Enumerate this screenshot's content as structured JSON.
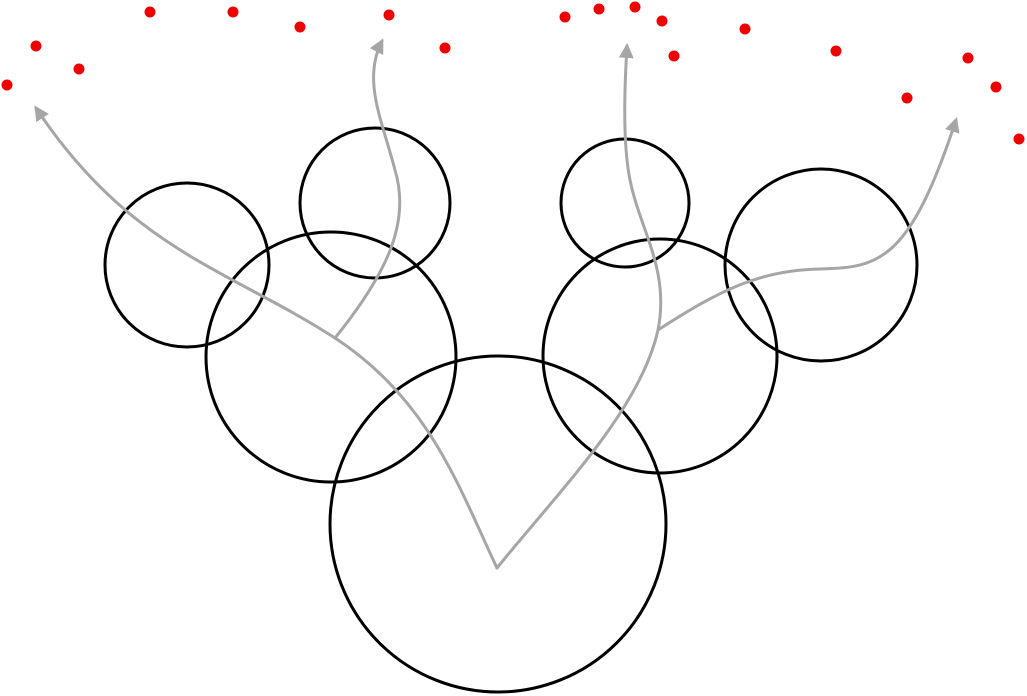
{
  "colors": {
    "background": "#ffffff",
    "circle_stroke": "#000000",
    "path_stroke": "#a6a6a6",
    "point_fill": "#ee0000"
  },
  "diagram": {
    "description_kind": "hierarchical circle packing with branching arrows to sample points",
    "circle_count": 7,
    "arrow_count": 4,
    "point_count": 20
  }
}
